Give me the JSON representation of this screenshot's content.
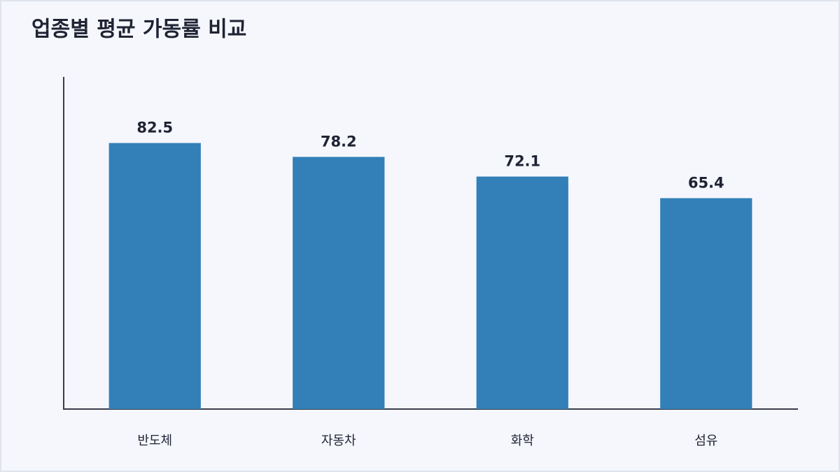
{
  "chart_data": {
    "type": "bar",
    "title": "업종별 평균 가동률 비교",
    "categories": [
      "반도체",
      "자동차",
      "화학",
      "섬유"
    ],
    "values": [
      82.5,
      78.2,
      72.1,
      65.4
    ],
    "color": "#3380b8",
    "ylim": [
      0,
      103
    ]
  }
}
